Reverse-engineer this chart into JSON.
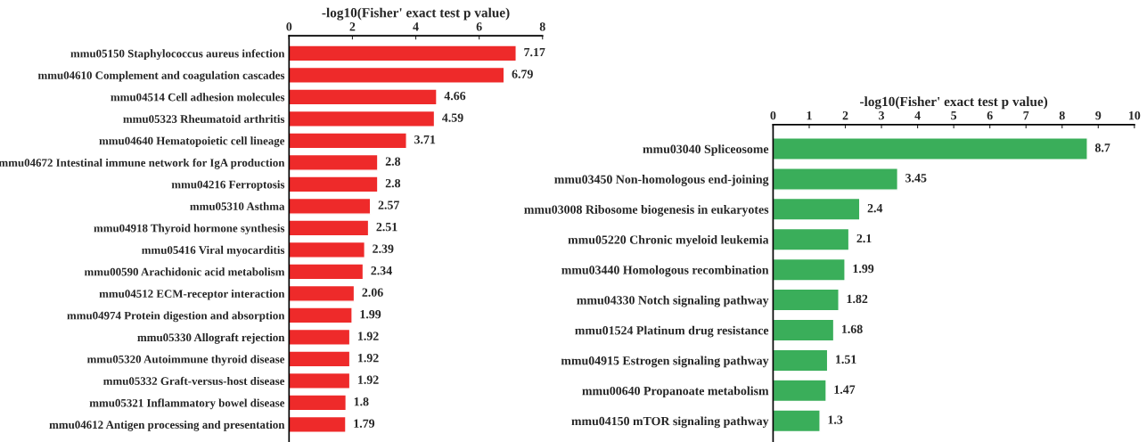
{
  "chart_data": [
    {
      "type": "bar",
      "orientation": "horizontal",
      "xlabel": "-log10(Fisher' exact test p value)",
      "xlim": [
        0,
        8
      ],
      "xticks": [
        0,
        2,
        4,
        6,
        8
      ],
      "data_labels": true,
      "grid": false,
      "categories": [
        "mmu05150 Staphylococcus aureus infection",
        "mmu04610 Complement and coagulation cascades",
        "mmu04514 Cell adhesion molecules",
        "mmu05323 Rheumatoid arthritis",
        "mmu04640 Hematopoietic cell lineage",
        "mmu04672 Intestinal immune network for IgA production",
        "mmu04216 Ferroptosis",
        "mmu05310 Asthma",
        "mmu04918 Thyroid hormone synthesis",
        "mmu05416 Viral myocarditis",
        "mmu00590 Arachidonic acid metabolism",
        "mmu04512 ECM-receptor interaction",
        "mmu04974 Protein digestion and absorption",
        "mmu05330 Allograft rejection",
        "mmu05320 Autoimmune thyroid disease",
        "mmu05332 Graft-versus-host disease",
        "mmu05321 Inflammatory bowel disease",
        "mmu04612 Antigen processing and presentation"
      ],
      "series": [
        {
          "color": "#ee2a2a",
          "values": [
            7.17,
            6.79,
            4.66,
            4.59,
            3.71,
            2.8,
            2.8,
            2.57,
            2.51,
            2.39,
            2.34,
            2.06,
            1.99,
            1.92,
            1.92,
            1.92,
            1.8,
            1.79
          ]
        }
      ]
    },
    {
      "type": "bar",
      "orientation": "horizontal",
      "xlabel": "-log10(Fisher' exact test p value)",
      "xlim": [
        0,
        10
      ],
      "xticks": [
        0,
        1,
        2,
        3,
        4,
        5,
        6,
        7,
        8,
        9,
        10
      ],
      "data_labels": true,
      "grid": false,
      "categories": [
        "mmu03040 Spliceosome",
        "mmu03450 Non-homologous end-joining",
        "mmu03008 Ribosome biogenesis in eukaryotes",
        "mmu05220 Chronic myeloid leukemia",
        "mmu03440 Homologous recombination",
        "mmu04330 Notch signaling pathway",
        "mmu01524 Platinum drug resistance",
        "mmu04915 Estrogen signaling pathway",
        "mmu00640 Propanoate metabolism",
        "mmu04150 mTOR signaling pathway"
      ],
      "series": [
        {
          "color": "#3aae5a",
          "values": [
            8.7,
            3.45,
            2.4,
            2.1,
            1.99,
            1.82,
            1.68,
            1.51,
            1.47,
            1.3
          ]
        }
      ]
    }
  ]
}
